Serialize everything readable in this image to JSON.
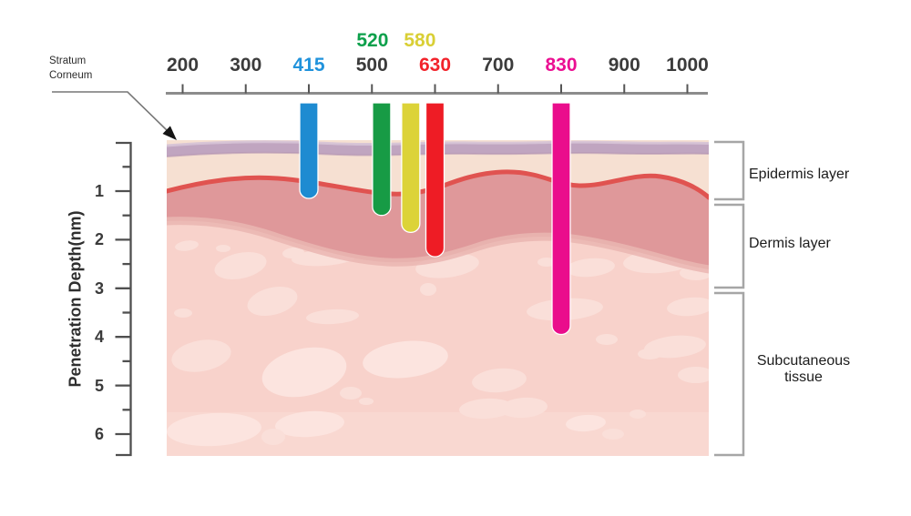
{
  "annotations": {
    "stratum_corneum": "Stratum\nCorneum"
  },
  "top_axis": {
    "tick_labels": [
      "200",
      "300",
      "415",
      "500",
      "630",
      "700",
      "830",
      "900",
      "1000"
    ],
    "tick_colors": [
      "#3b3b3b",
      "#3b3b3b",
      "#2193dc",
      "#3b3b3b",
      "#f2232b",
      "#3b3b3b",
      "#eb0f92",
      "#3b3b3b",
      "#3b3b3b"
    ],
    "upper_labels": [
      {
        "text": "520",
        "color": "#0da04b"
      },
      {
        "text": "580",
        "color": "#d9cf35"
      }
    ]
  },
  "left_axis": {
    "title": "Penetration Depth(nm)",
    "tick_labels": [
      "1",
      "2",
      "3",
      "4",
      "5",
      "6"
    ]
  },
  "skin_layers": [
    {
      "label": "Epidermis layer"
    },
    {
      "label": "Dermis layer"
    },
    {
      "label": "Subcutaneous tissue"
    }
  ],
  "chart_data": {
    "type": "bar",
    "x_axis_ticks_nm": [
      200,
      300,
      415,
      500,
      630,
      700,
      830,
      900,
      1000
    ],
    "ylabel": "Penetration Depth(nm)",
    "y_ticks": [
      1,
      2,
      3,
      4,
      5,
      6
    ],
    "series": [
      {
        "wavelength_nm": 415,
        "penetration_depth_nm": 1.15,
        "color": "#1e8bd1"
      },
      {
        "wavelength_nm": 520,
        "penetration_depth_nm": 1.5,
        "color": "#179b45"
      },
      {
        "wavelength_nm": 580,
        "penetration_depth_nm": 1.85,
        "color": "#dcd338"
      },
      {
        "wavelength_nm": 630,
        "penetration_depth_nm": 2.35,
        "color": "#ee1c25"
      },
      {
        "wavelength_nm": 830,
        "penetration_depth_nm": 3.95,
        "color": "#ea0d8c"
      }
    ],
    "layer_annotations": [
      "Epidermis layer",
      "Dermis layer",
      "Subcutaneous tissue"
    ],
    "surface_annotation": "Stratum Corneum"
  },
  "palette": {
    "stratum_corneum_band": "#c0a5c0",
    "stratum_corneum_highlight": "#d6c3d6",
    "stratum_corneum_edge": "#b091ae",
    "epidermis_fill": "#f6e0d2",
    "dermis_line": "#e05350",
    "dermis_fill": "#df989a",
    "dermis_fringe": "#eab6b2",
    "subcutaneous_fill": "#f8d2cb",
    "subcutaneous_light_band": "#fadcd6",
    "blob_fill": "#fadfd9",
    "blob_fill_light": "#fce4df",
    "axis_line": "#8c8c8c",
    "tick_color": "#555555",
    "left_axis_color": "#4f4f4f",
    "bracket_color": "#a6a6a6",
    "leader_line": "#777777",
    "arrowhead": "#151515"
  }
}
